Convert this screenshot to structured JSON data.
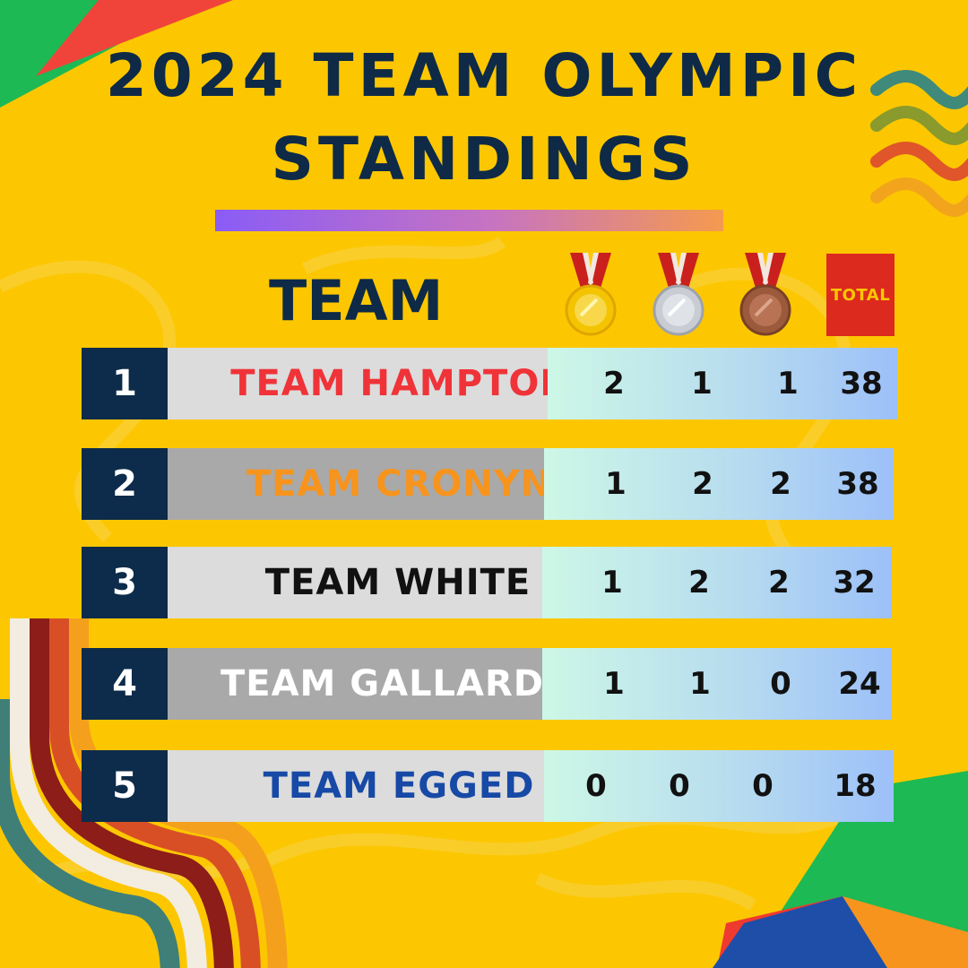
{
  "title": {
    "line1": "2024 TEAM OLYMPIC",
    "line2": "STANDINGS"
  },
  "table": {
    "team_header": "TEAM",
    "total_label": "TOTAL",
    "medal_icons": [
      "gold-medal-icon",
      "silver-medal-icon",
      "bronze-medal-icon"
    ],
    "rows": [
      {
        "rank": "1",
        "team": "TEAM HAMPTON",
        "gold": "2",
        "silver": "1",
        "bronze": "1",
        "total": "38",
        "name_color": "#ef3338",
        "name_bg": "#dcdcdc"
      },
      {
        "rank": "2",
        "team": "TEAM CRONYN",
        "gold": "1",
        "silver": "2",
        "bronze": "2",
        "total": "38",
        "name_color": "#f7941d",
        "name_bg": "#a9a9a9"
      },
      {
        "rank": "3",
        "team": "TEAM WHITE",
        "gold": "1",
        "silver": "2",
        "bronze": "2",
        "total": "32",
        "name_color": "#111111",
        "name_bg": "#dcdcdc"
      },
      {
        "rank": "4",
        "team": "TEAM GALLARDO",
        "gold": "1",
        "silver": "1",
        "bronze": "0",
        "total": "24",
        "name_color": "#ffffff",
        "name_bg": "#a9a9a9"
      },
      {
        "rank": "5",
        "team": "TEAM EGGED",
        "gold": "0",
        "silver": "0",
        "bronze": "0",
        "total": "18",
        "name_color": "#1749a6",
        "name_bg": "#dcdcdc"
      }
    ]
  },
  "colors": {
    "background": "#fcc700",
    "navy": "#0e2a47",
    "total_badge": "#dc2a1e"
  }
}
